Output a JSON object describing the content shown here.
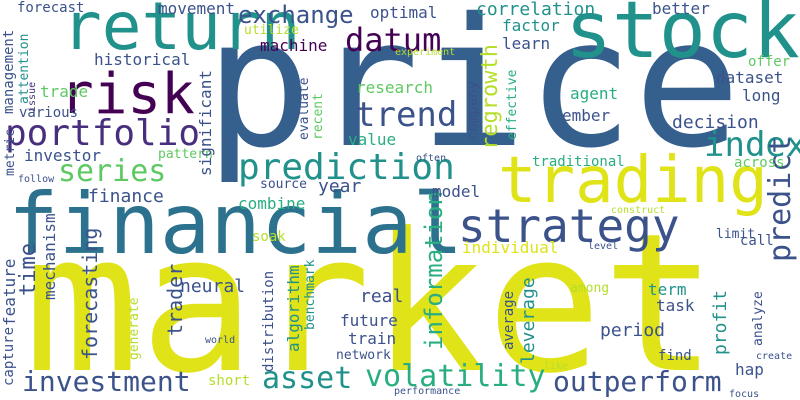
{
  "palette": {
    "deep_purple": "#440154",
    "indigo": "#3b528b",
    "blue": "#355f8d",
    "teal_blue": "#2c728e",
    "teal": "#21918c",
    "sea_green": "#28ae80",
    "green": "#5ec962",
    "lime": "#b5de2b",
    "yellow": "#dfe318",
    "purple": "#472f7d"
  },
  "words": [
    {
      "text": "market",
      "color": "#dfe318"
    },
    {
      "text": "price",
      "color": "#355f8d"
    },
    {
      "text": "financial",
      "color": "#2c728e"
    },
    {
      "text": "stock",
      "color": "#21918c"
    },
    {
      "text": "trading",
      "color": "#dfe318"
    },
    {
      "text": "return",
      "color": "#21918c"
    },
    {
      "text": "risk",
      "color": "#440154"
    },
    {
      "text": "strategy",
      "color": "#3b528b"
    },
    {
      "text": "portfolio",
      "color": "#472f7d"
    },
    {
      "text": "prediction",
      "color": "#21918c"
    },
    {
      "text": "datum",
      "color": "#440154"
    },
    {
      "text": "series",
      "color": "#5ec962"
    },
    {
      "text": "trend",
      "color": "#3b528b"
    },
    {
      "text": "index",
      "color": "#21918c"
    },
    {
      "text": "investment",
      "color": "#3b528b"
    },
    {
      "text": "asset",
      "color": "#21918c"
    },
    {
      "text": "volatility",
      "color": "#28ae80"
    },
    {
      "text": "outperform",
      "color": "#3b528b"
    },
    {
      "text": "exchange",
      "color": "#3b528b"
    },
    {
      "text": "information",
      "color": "#28ae80"
    },
    {
      "text": "predict",
      "color": "#3b528b"
    },
    {
      "text": "time",
      "color": "#3b528b"
    },
    {
      "text": "regrowth",
      "color": "#b5de2b"
    },
    {
      "text": "forecasting",
      "color": "#3b528b"
    },
    {
      "text": "finance",
      "color": "#3b528b"
    },
    {
      "text": "movement",
      "color": "#3b528b"
    },
    {
      "text": "optimal",
      "color": "#3b528b"
    },
    {
      "text": "correlation",
      "color": "#21918c"
    },
    {
      "text": "factor",
      "color": "#21918c"
    },
    {
      "text": "better",
      "color": "#3b528b"
    },
    {
      "text": "learn",
      "color": "#3b528b"
    },
    {
      "text": "machine",
      "color": "#440154"
    },
    {
      "text": "historical",
      "color": "#3b528b"
    },
    {
      "text": "research",
      "color": "#5ec962"
    },
    {
      "text": "company",
      "color": "#3b528b"
    },
    {
      "text": "agent",
      "color": "#28ae80"
    },
    {
      "text": "long",
      "color": "#3b528b"
    },
    {
      "text": "ember",
      "color": "#3b528b"
    },
    {
      "text": "decision",
      "color": "#3b528b"
    },
    {
      "text": "dataset",
      "color": "#3b528b"
    },
    {
      "text": "offer",
      "color": "#5ec962"
    },
    {
      "text": "value",
      "color": "#28ae80"
    },
    {
      "text": "investor",
      "color": "#3b528b"
    },
    {
      "text": "significant",
      "color": "#3b528b"
    },
    {
      "text": "various",
      "color": "#3b528b"
    },
    {
      "text": "trade",
      "color": "#5ec962"
    },
    {
      "text": "management",
      "color": "#3b528b"
    },
    {
      "text": "attention",
      "color": "#21918c"
    },
    {
      "text": "forecast",
      "color": "#3b528b"
    },
    {
      "text": "utilize",
      "color": "#b5de2b"
    },
    {
      "text": "experiment",
      "color": "#b5de2b"
    },
    {
      "text": "evaluate",
      "color": "#3b528b"
    },
    {
      "text": "recent",
      "color": "#5ec962"
    },
    {
      "text": "effective",
      "color": "#28ae80"
    },
    {
      "text": "pattern",
      "color": "#5ec962"
    },
    {
      "text": "year",
      "color": "#3b528b"
    },
    {
      "text": "source",
      "color": "#3b528b"
    },
    {
      "text": "combine",
      "color": "#28ae80"
    },
    {
      "text": "model",
      "color": "#3b528b"
    },
    {
      "text": "traditional",
      "color": "#28ae80"
    },
    {
      "text": "across",
      "color": "#5ec962"
    },
    {
      "text": "often",
      "color": "#3b528b"
    },
    {
      "text": "follow",
      "color": "#3b528b"
    },
    {
      "text": "metric",
      "color": "#3b528b"
    },
    {
      "text": "issue",
      "color": "#472f7d"
    },
    {
      "text": "mechanism",
      "color": "#3b528b"
    },
    {
      "text": "feature",
      "color": "#3b528b"
    },
    {
      "text": "capture",
      "color": "#3b528b"
    },
    {
      "text": "soak",
      "color": "#b5de2b"
    },
    {
      "text": "individual",
      "color": "#dfe318"
    },
    {
      "text": "construct",
      "color": "#b5de2b"
    },
    {
      "text": "call",
      "color": "#3b528b"
    },
    {
      "text": "limit",
      "color": "#3b528b"
    },
    {
      "text": "level",
      "color": "#3b528b"
    },
    {
      "text": "neural",
      "color": "#3b528b"
    },
    {
      "text": "trader",
      "color": "#3b528b"
    },
    {
      "text": "algorithm",
      "color": "#21918c"
    },
    {
      "text": "benchmark",
      "color": "#21918c"
    },
    {
      "text": "distribution",
      "color": "#3b528b"
    },
    {
      "text": "real",
      "color": "#3b528b"
    },
    {
      "text": "future",
      "color": "#3b528b"
    },
    {
      "text": "train",
      "color": "#3b528b"
    },
    {
      "text": "network",
      "color": "#3b528b"
    },
    {
      "text": "term",
      "color": "#21918c"
    },
    {
      "text": "among",
      "color": "#b5de2b"
    },
    {
      "text": "task",
      "color": "#3b528b"
    },
    {
      "text": "average",
      "color": "#3b528b"
    },
    {
      "text": "leverage",
      "color": "#21918c"
    },
    {
      "text": "period",
      "color": "#3b528b"
    },
    {
      "text": "profit",
      "color": "#21918c"
    },
    {
      "text": "analyze",
      "color": "#3b528b"
    },
    {
      "text": "find",
      "color": "#3b528b"
    },
    {
      "text": "hap",
      "color": "#3b528b"
    },
    {
      "text": "create",
      "color": "#3b528b"
    },
    {
      "text": "like",
      "color": "#b5de2b"
    },
    {
      "text": "focus",
      "color": "#3b528b"
    },
    {
      "text": "world",
      "color": "#3b528b"
    },
    {
      "text": "generate",
      "color": "#b5de2b"
    },
    {
      "text": "short",
      "color": "#b5de2b"
    },
    {
      "text": "performance",
      "color": "#3b528b"
    }
  ]
}
